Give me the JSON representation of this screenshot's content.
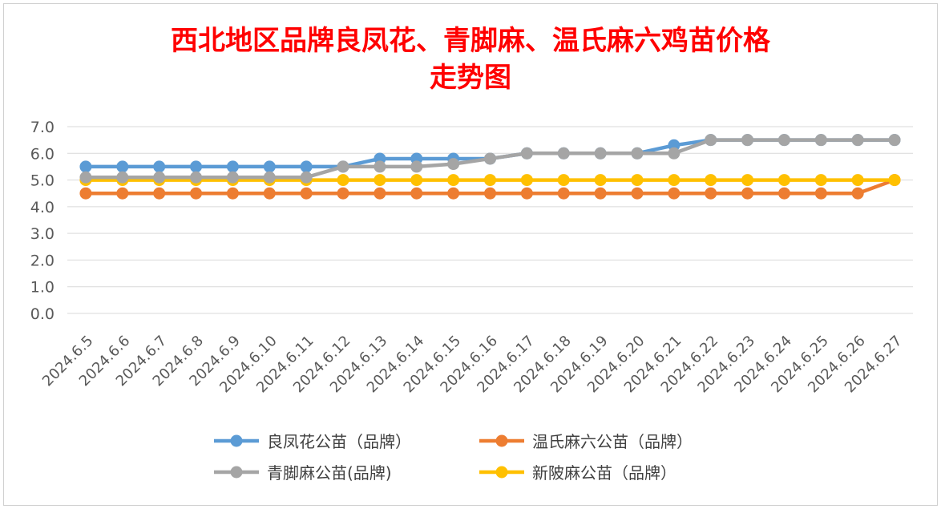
{
  "chart_data": {
    "type": "line",
    "title_line1": "西北地区品牌良凤花、青脚麻、温氏麻六鸡苗价格",
    "title_line2": "走势图",
    "xlabel": "",
    "ylabel": "",
    "ylim": [
      0,
      7
    ],
    "yticks": [
      "0.0",
      "1.0",
      "2.0",
      "3.0",
      "4.0",
      "5.0",
      "6.0",
      "7.0"
    ],
    "grid": true,
    "legend_position": "bottom",
    "categories": [
      "2024.6.5",
      "2024.6.6",
      "2024.6.7",
      "2024.6.8",
      "2024.6.9",
      "2024.6.10",
      "2024.6.11",
      "2024.6.12",
      "2024.6.13",
      "2024.6.14",
      "2024.6.15",
      "2024.6.16",
      "2024.6.17",
      "2024.6.18",
      "2024.6.19",
      "2024.6.20",
      "2024.6.21",
      "2024.6.22",
      "2024.6.23",
      "2024.6.24",
      "2024.6.25",
      "2024.6.26",
      "2024.6.27"
    ],
    "series": [
      {
        "name": "良凤花公苗（品牌）",
        "color": "#5b9bd5",
        "values": [
          5.5,
          5.5,
          5.5,
          5.5,
          5.5,
          5.5,
          5.5,
          5.5,
          5.8,
          5.8,
          5.8,
          5.8,
          6.0,
          6.0,
          6.0,
          6.0,
          6.3,
          6.5,
          6.5,
          6.5,
          6.5,
          6.5,
          6.5
        ]
      },
      {
        "name": "温氏麻六公苗（品牌）",
        "color": "#ed7d31",
        "values": [
          4.5,
          4.5,
          4.5,
          4.5,
          4.5,
          4.5,
          4.5,
          4.5,
          4.5,
          4.5,
          4.5,
          4.5,
          4.5,
          4.5,
          4.5,
          4.5,
          4.5,
          4.5,
          4.5,
          4.5,
          4.5,
          4.5,
          5.0
        ]
      },
      {
        "name": "青脚麻公苗(品牌)",
        "color": "#a5a5a5",
        "values": [
          5.1,
          5.1,
          5.1,
          5.1,
          5.1,
          5.1,
          5.1,
          5.5,
          5.5,
          5.5,
          5.6,
          5.8,
          6.0,
          6.0,
          6.0,
          6.0,
          6.0,
          6.5,
          6.5,
          6.5,
          6.5,
          6.5,
          6.5
        ]
      },
      {
        "name": "新陂麻公苗（品牌）",
        "color": "#ffc000",
        "values": [
          5.0,
          5.0,
          5.0,
          5.0,
          5.0,
          5.0,
          5.0,
          5.0,
          5.0,
          5.0,
          5.0,
          5.0,
          5.0,
          5.0,
          5.0,
          5.0,
          5.0,
          5.0,
          5.0,
          5.0,
          5.0,
          5.0,
          5.0
        ]
      }
    ]
  }
}
